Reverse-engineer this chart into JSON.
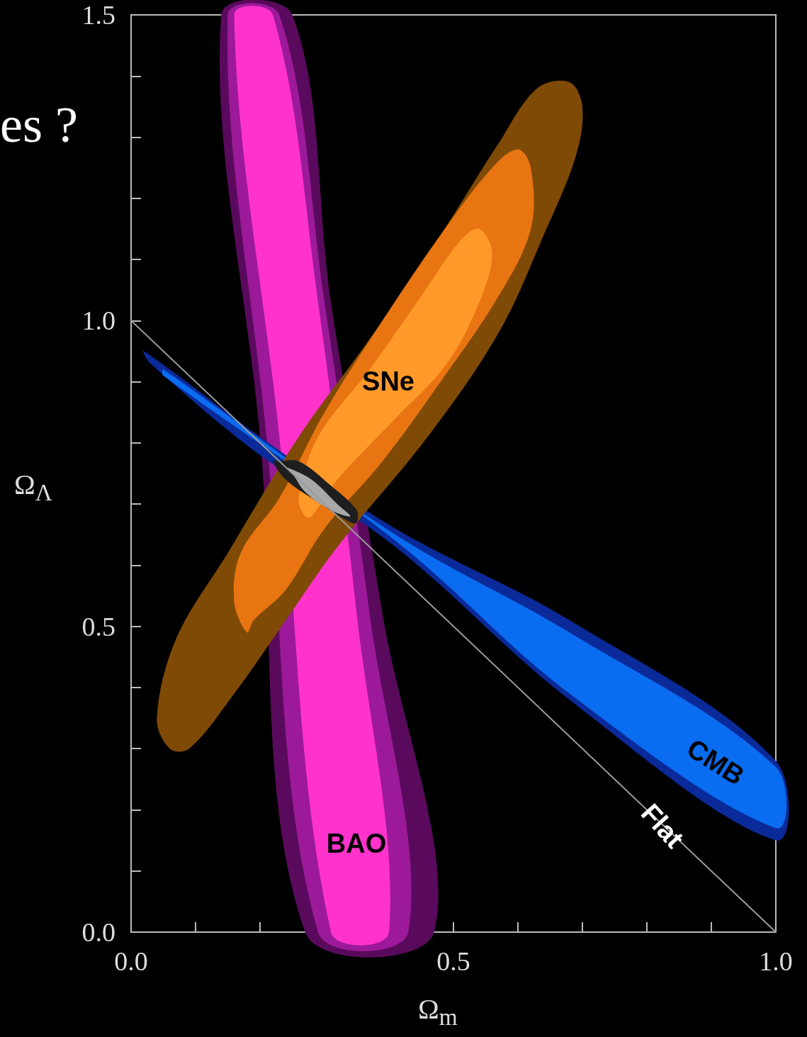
{
  "chart_data": {
    "type": "area",
    "xlabel": "Ω$_{m}$",
    "ylabel": "Ω$_{Λ}$",
    "xlim": [
      0,
      1
    ],
    "ylim": [
      0,
      1.5
    ],
    "xticks": [
      {
        "value": 0,
        "label": "0.0"
      },
      {
        "value": 0.1,
        "label": null
      },
      {
        "value": 0.2,
        "label": null
      },
      {
        "value": 0.3,
        "label": null
      },
      {
        "value": 0.4,
        "label": null
      },
      {
        "value": 0.5,
        "label": "0.5"
      },
      {
        "value": 0.6,
        "label": null
      },
      {
        "value": 0.7,
        "label": null
      },
      {
        "value": 0.8,
        "label": null
      },
      {
        "value": 0.9,
        "label": null
      },
      {
        "value": 1,
        "label": "1.0"
      }
    ],
    "yticks": [
      {
        "value": 0,
        "label": "0.0"
      },
      {
        "value": 0.1,
        "label": null
      },
      {
        "value": 0.2,
        "label": null
      },
      {
        "value": 0.3,
        "label": null
      },
      {
        "value": 0.4,
        "label": null
      },
      {
        "value": 0.5,
        "label": "0.5"
      },
      {
        "value": 0.6,
        "label": null
      },
      {
        "value": 0.7,
        "label": null
      },
      {
        "value": 0.8,
        "label": null
      },
      {
        "value": 0.9,
        "label": null
      },
      {
        "value": 1,
        "label": "1.0"
      },
      {
        "value": 1.1,
        "label": null
      },
      {
        "value": 1.2,
        "label": null
      },
      {
        "value": 1.3,
        "label": null
      },
      {
        "value": 1.4,
        "label": null
      },
      {
        "value": 1.5,
        "label": "1.5"
      }
    ],
    "grid": false,
    "series": [
      {
        "color": "#5a0a5c",
        "x": [
          0.14,
          0.2,
          0.27,
          0.47,
          0.39,
          0.31,
          0.25
        ],
        "values": [
          1.5,
          0.81,
          0,
          0,
          0.52,
          1.03,
          1.5
        ]
      },
      {
        "color": "#9c1a99",
        "x": [
          0.15,
          0.21,
          0.29,
          0.43,
          0.37,
          0.3,
          0.23
        ],
        "values": [
          1.5,
          0.81,
          0,
          0,
          0.52,
          1.03,
          1.5
        ]
      },
      {
        "color": "#ff33cc",
        "x": [
          0.16,
          0.23,
          0.31,
          0.4,
          0.35,
          0.29,
          0.22
        ],
        "values": [
          1.5,
          0.81,
          0,
          0,
          0.52,
          1.03,
          1.5
        ]
      },
      {
        "color": "#0a2a9a",
        "x": [
          0.02,
          0.2,
          0.41,
          0.68,
          1,
          1,
          0.68,
          0.41,
          0.2,
          0.03
        ],
        "values": [
          0.95,
          0.81,
          0.66,
          0.51,
          0.28,
          0.15,
          0.38,
          0.63,
          0.78,
          0.93
        ]
      },
      {
        "color": "#0a6cf0",
        "x": [
          0.05,
          0.41,
          0.68,
          1,
          1,
          0.68,
          0.41,
          0.05
        ],
        "values": [
          0.92,
          0.65,
          0.49,
          0.27,
          0.17,
          0.39,
          0.64,
          0.91
        ]
      },
      {
        "color": "#7f4a06",
        "x": [
          0.06,
          0.04,
          0.07,
          0.15,
          0.26,
          0.37,
          0.48,
          0.57,
          0.63,
          0.68,
          0.7,
          0.69,
          0.64,
          0.57,
          0.46,
          0.32,
          0.24,
          0.16,
          0.09
        ],
        "values": [
          0.3,
          0.35,
          0.48,
          0.62,
          0.81,
          0.97,
          1.14,
          1.29,
          1.38,
          1.39,
          1.35,
          1.27,
          1.14,
          0.98,
          0.81,
          0.63,
          0.51,
          0.39,
          0.3
        ]
      },
      {
        "color": "#e87511",
        "x": [
          0.18,
          0.16,
          0.17,
          0.23,
          0.3,
          0.39,
          0.48,
          0.56,
          0.6,
          0.62,
          0.62,
          0.57,
          0.48,
          0.39,
          0.3,
          0.24,
          0.19
        ],
        "values": [
          0.49,
          0.54,
          0.62,
          0.71,
          0.85,
          1,
          1.14,
          1.25,
          1.28,
          1.25,
          1.15,
          1.04,
          0.9,
          0.77,
          0.66,
          0.56,
          0.51
        ]
      },
      {
        "color": "#ff9a2a",
        "x": [
          0.27,
          0.26,
          0.29,
          0.37,
          0.45,
          0.51,
          0.54,
          0.56,
          0.54,
          0.49,
          0.41,
          0.32,
          0.28
        ],
        "values": [
          0.68,
          0.71,
          0.81,
          0.92,
          1.04,
          1.13,
          1.15,
          1.11,
          1.03,
          0.93,
          0.84,
          0.74,
          0.68
        ]
      },
      {
        "color": "#1e1e1e",
        "x": [
          0.23,
          0.26,
          0.31,
          0.35,
          0.35,
          0.34,
          0.28,
          0.24,
          0.22
        ],
        "values": [
          0.77,
          0.77,
          0.73,
          0.69,
          0.67,
          0.67,
          0.71,
          0.74,
          0.77
        ]
      },
      {
        "color": "#a8a8a8",
        "x": [
          0.24,
          0.28,
          0.32,
          0.34,
          0.31,
          0.27,
          0.25
        ],
        "values": [
          0.76,
          0.74,
          0.7,
          0.68,
          0.69,
          0.72,
          0.75
        ]
      },
      {
        "type": "line",
        "color": "#9a9a9a",
        "x": [
          0,
          1
        ],
        "values": [
          1,
          0
        ]
      }
    ],
    "annotations": [
      "es ?",
      "SNe",
      "BAO",
      "CMB",
      "Flat"
    ]
  }
}
